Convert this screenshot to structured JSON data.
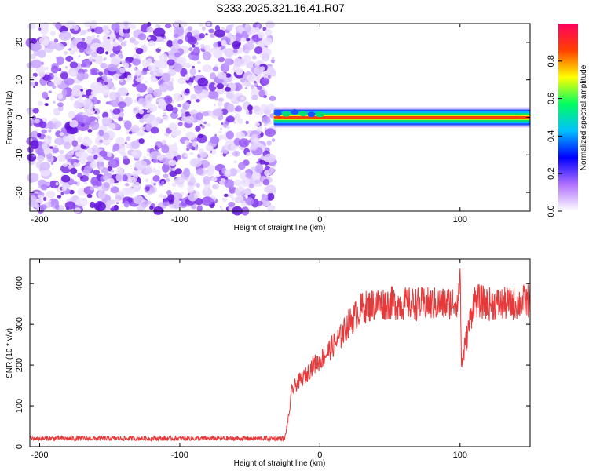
{
  "chart_data": [
    {
      "type": "heatmap",
      "title": "S233.2025.321.16.41.R07",
      "xlabel": "Height of straight line (km)",
      "ylabel": "Frequency (Hz)",
      "xlim": [
        -207,
        150
      ],
      "ylim": [
        -25,
        25
      ],
      "xticks": [
        -200,
        -100,
        0,
        100
      ],
      "yticks": [
        -20,
        -10,
        0,
        10,
        20
      ],
      "noise_region": [
        -207,
        -33
      ],
      "signal_band": {
        "x_start": -33,
        "x_end": 150,
        "center_freq_hz": 0,
        "approx_halfwidth_hz": 1.5
      },
      "colorbar": {
        "label": "Normalized spectral amplitude",
        "range": [
          0,
          1
        ],
        "ticks": [
          0.0,
          0.2,
          0.4,
          0.6,
          0.8
        ],
        "tick_labels": [
          "0.0",
          "0.2",
          "0.4",
          "0.6",
          "0.8"
        ],
        "colors": [
          "#ffffff",
          "#b070ff",
          "#0000ff",
          "#00c0ff",
          "#00ff60",
          "#ffff00",
          "#ff4000",
          "#ff0060"
        ]
      }
    },
    {
      "type": "line",
      "xlabel": "Height of straight line (km)",
      "ylabel": "SNR (10 * v/v)",
      "xlim": [
        -207,
        150
      ],
      "ylim": [
        0,
        460
      ],
      "xticks": [
        -200,
        -100,
        0,
        100
      ],
      "yticks": [
        0,
        100,
        200,
        300,
        400
      ],
      "series": [
        {
          "name": "SNR",
          "color": "#e8393a",
          "x": [
            -207,
            -180,
            -150,
            -120,
            -100,
            -80,
            -60,
            -40,
            -25,
            -22,
            -20,
            -15,
            -10,
            -5,
            0,
            5,
            10,
            15,
            20,
            25,
            30,
            35,
            40,
            50,
            60,
            70,
            80,
            90,
            99,
            100,
            101,
            110,
            120,
            130,
            140,
            150
          ],
          "values": [
            20,
            20,
            20,
            20,
            20,
            20,
            20,
            20,
            20,
            80,
            140,
            160,
            175,
            200,
            210,
            230,
            250,
            270,
            300,
            320,
            340,
            345,
            350,
            352,
            350,
            350,
            350,
            350,
            360,
            450,
            200,
            360,
            350,
            350,
            350,
            360
          ]
        }
      ]
    }
  ]
}
